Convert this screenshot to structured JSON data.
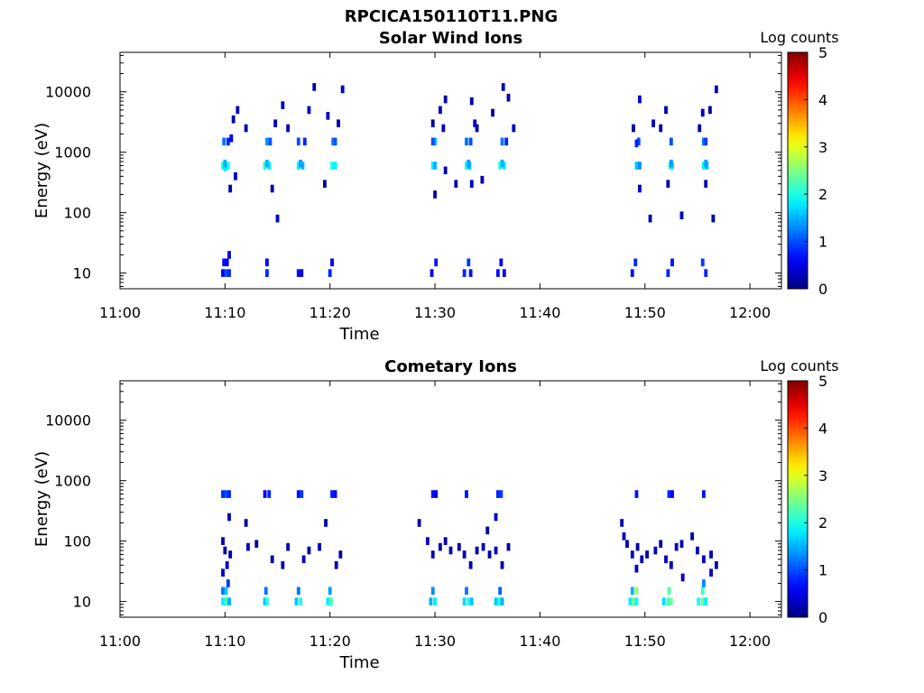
{
  "figure_title": "RPCICA150110T11.PNG",
  "chart_data": [
    {
      "type": "heatmap",
      "title": "Solar Wind Ions",
      "xlabel": "Time",
      "ylabel": "Energy (eV)",
      "x_tick_labels": [
        "11:00",
        "11:10",
        "11:20",
        "11:30",
        "11:40",
        "11:50",
        "12:00"
      ],
      "x_ticks_minutes": [
        0,
        10,
        20,
        30,
        40,
        50,
        60
      ],
      "xlim_minutes": [
        0,
        63
      ],
      "y_tick_labels": [
        "10",
        "100",
        "1000",
        "10000"
      ],
      "y_ticks": [
        10,
        100,
        1000,
        10000
      ],
      "ylim": [
        5.5,
        45000
      ],
      "y_scale": "log",
      "colorbar_label": "Log counts",
      "colorbar_ticks": [
        "0",
        "1",
        "2",
        "3",
        "4",
        "5"
      ],
      "clim": [
        0,
        5
      ],
      "colormap": "jet",
      "cells": [
        [
          9.8,
          600,
          2.0
        ],
        [
          10.0,
          600,
          2.3
        ],
        [
          10.3,
          600,
          2.0
        ],
        [
          10.0,
          560,
          1.8
        ],
        [
          10.0,
          650,
          1.5
        ],
        [
          9.9,
          1500,
          1.2
        ],
        [
          10.3,
          1500,
          0.8
        ],
        [
          10.6,
          1700,
          0.6
        ],
        [
          13.8,
          600,
          2.0
        ],
        [
          14.2,
          600,
          1.8
        ],
        [
          14.0,
          650,
          1.5
        ],
        [
          14.0,
          1500,
          1.4
        ],
        [
          14.3,
          1500,
          1.0
        ],
        [
          17.0,
          600,
          1.8
        ],
        [
          17.4,
          600,
          1.5
        ],
        [
          17.2,
          650,
          1.4
        ],
        [
          17.0,
          1500,
          1.0
        ],
        [
          17.6,
          1500,
          0.8
        ],
        [
          20.2,
          600,
          2.0
        ],
        [
          20.5,
          600,
          1.8
        ],
        [
          20.3,
          1500,
          1.2
        ],
        [
          20.5,
          1500,
          1.0
        ],
        [
          29.8,
          600,
          1.8
        ],
        [
          30.0,
          600,
          1.5
        ],
        [
          30.0,
          1500,
          1.5
        ],
        [
          29.8,
          1500,
          1.0
        ],
        [
          33.0,
          600,
          1.9
        ],
        [
          33.3,
          600,
          1.6
        ],
        [
          33.2,
          650,
          1.4
        ],
        [
          33.0,
          1500,
          1.2
        ],
        [
          33.4,
          1500,
          1.0
        ],
        [
          36.2,
          600,
          2.0
        ],
        [
          36.6,
          600,
          1.8
        ],
        [
          36.4,
          650,
          1.5
        ],
        [
          36.4,
          1500,
          1.2
        ],
        [
          36.8,
          1500,
          0.8
        ],
        [
          49.2,
          600,
          1.6
        ],
        [
          49.5,
          600,
          1.3
        ],
        [
          49.4,
          1500,
          1.0
        ],
        [
          49.2,
          1400,
          0.8
        ],
        [
          52.4,
          600,
          2.0
        ],
        [
          52.6,
          600,
          1.8
        ],
        [
          52.5,
          650,
          1.4
        ],
        [
          52.5,
          1500,
          1.0
        ],
        [
          55.6,
          600,
          1.8
        ],
        [
          55.9,
          600,
          1.6
        ],
        [
          55.8,
          650,
          1.4
        ],
        [
          55.6,
          1500,
          1.2
        ],
        [
          55.8,
          1500,
          0.9
        ],
        [
          9.8,
          10,
          0.6
        ],
        [
          10.1,
          10,
          1.0
        ],
        [
          10.4,
          10,
          0.8
        ],
        [
          9.9,
          15,
          0.7
        ],
        [
          10.2,
          15,
          0.6
        ],
        [
          10.4,
          20,
          0.5
        ],
        [
          14.0,
          10,
          0.8
        ],
        [
          14.0,
          15,
          0.6
        ],
        [
          17.0,
          10,
          0.7
        ],
        [
          17.3,
          10,
          0.5
        ],
        [
          20.0,
          10,
          0.8
        ],
        [
          20.2,
          15,
          0.6
        ],
        [
          29.7,
          10,
          0.6
        ],
        [
          30.1,
          15,
          0.7
        ],
        [
          32.8,
          10,
          0.8
        ],
        [
          33.2,
          15,
          0.9
        ],
        [
          33.4,
          10,
          0.7
        ],
        [
          36.0,
          10,
          0.7
        ],
        [
          36.3,
          15,
          0.6
        ],
        [
          36.6,
          10,
          0.5
        ],
        [
          48.8,
          10,
          0.7
        ],
        [
          49.1,
          15,
          0.8
        ],
        [
          52.2,
          10,
          0.8
        ],
        [
          52.6,
          15,
          0.7
        ],
        [
          55.5,
          15,
          0.9
        ],
        [
          55.8,
          10,
          0.8
        ],
        [
          10.8,
          3500,
          0.3
        ],
        [
          11.2,
          5000,
          0.3
        ],
        [
          12.0,
          2500,
          0.2
        ],
        [
          11.0,
          400,
          0.3
        ],
        [
          10.5,
          250,
          0.2
        ],
        [
          14.8,
          3000,
          0.2
        ],
        [
          15.5,
          6000,
          0.3
        ],
        [
          16.0,
          2500,
          0.3
        ],
        [
          18.0,
          5000,
          0.3
        ],
        [
          18.5,
          12000,
          0.2
        ],
        [
          19.8,
          4000,
          0.3
        ],
        [
          20.8,
          3000,
          0.2
        ],
        [
          21.2,
          11000,
          0.3
        ],
        [
          14.5,
          250,
          0.2
        ],
        [
          15.0,
          80,
          0.3
        ],
        [
          19.5,
          300,
          0.2
        ],
        [
          29.8,
          3000,
          0.2
        ],
        [
          30.5,
          5000,
          0.3
        ],
        [
          31.0,
          7500,
          0.2
        ],
        [
          30.8,
          2500,
          0.3
        ],
        [
          33.5,
          7000,
          0.2
        ],
        [
          33.8,
          3000,
          0.3
        ],
        [
          34.0,
          2500,
          0.2
        ],
        [
          35.5,
          4500,
          0.2
        ],
        [
          36.5,
          12000,
          0.3
        ],
        [
          37.0,
          8000,
          0.2
        ],
        [
          37.5,
          2500,
          0.3
        ],
        [
          31.0,
          500,
          0.2
        ],
        [
          32.0,
          300,
          0.2
        ],
        [
          33.5,
          300,
          0.3
        ],
        [
          34.5,
          350,
          0.2
        ],
        [
          30.0,
          200,
          0.2
        ],
        [
          48.9,
          2500,
          0.2
        ],
        [
          49.5,
          7500,
          0.3
        ],
        [
          50.8,
          3000,
          0.3
        ],
        [
          51.5,
          2500,
          0.2
        ],
        [
          52.0,
          5000,
          0.2
        ],
        [
          55.5,
          4500,
          0.3
        ],
        [
          56.2,
          5000,
          0.2
        ],
        [
          56.8,
          11000,
          0.3
        ],
        [
          55.2,
          2500,
          0.2
        ],
        [
          49.5,
          250,
          0.3
        ],
        [
          52.2,
          300,
          0.2
        ],
        [
          55.8,
          300,
          0.2
        ],
        [
          50.5,
          80,
          0.2
        ],
        [
          53.5,
          90,
          0.3
        ],
        [
          56.5,
          80,
          0.2
        ]
      ]
    },
    {
      "type": "heatmap",
      "title": "Cometary Ions",
      "xlabel": "Time",
      "ylabel": "Energy (eV)",
      "x_tick_labels": [
        "11:00",
        "11:10",
        "11:20",
        "11:30",
        "11:40",
        "11:50",
        "12:00"
      ],
      "x_ticks_minutes": [
        0,
        10,
        20,
        30,
        40,
        50,
        60
      ],
      "xlim_minutes": [
        0,
        63
      ],
      "y_tick_labels": [
        "10",
        "100",
        "1000",
        "10000"
      ],
      "y_ticks": [
        10,
        100,
        1000,
        10000
      ],
      "ylim": [
        5.5,
        45000
      ],
      "y_scale": "log",
      "colorbar_label": "Log counts",
      "colorbar_ticks": [
        "0",
        "1",
        "2",
        "3",
        "4",
        "5"
      ],
      "clim": [
        0,
        5
      ],
      "colormap": "jet",
      "cells": [
        [
          9.8,
          600,
          0.8
        ],
        [
          10.1,
          600,
          1.0
        ],
        [
          10.4,
          600,
          0.8
        ],
        [
          13.8,
          600,
          0.6
        ],
        [
          14.2,
          600,
          0.8
        ],
        [
          17.0,
          600,
          0.7
        ],
        [
          17.3,
          600,
          0.9
        ],
        [
          20.2,
          600,
          0.8
        ],
        [
          20.5,
          600,
          0.6
        ],
        [
          29.8,
          600,
          0.7
        ],
        [
          30.1,
          600,
          0.5
        ],
        [
          33.0,
          600,
          0.7
        ],
        [
          36.0,
          600,
          0.8
        ],
        [
          36.3,
          600,
          0.9
        ],
        [
          49.2,
          600,
          0.7
        ],
        [
          52.3,
          600,
          0.8
        ],
        [
          52.6,
          600,
          0.6
        ],
        [
          55.6,
          600,
          0.7
        ],
        [
          9.8,
          10,
          1.8
        ],
        [
          10.1,
          10,
          2.2
        ],
        [
          10.4,
          10,
          1.5
        ],
        [
          9.8,
          15,
          1.2
        ],
        [
          10.1,
          15,
          1.6
        ],
        [
          10.3,
          20,
          0.9
        ],
        [
          13.8,
          10,
          1.6
        ],
        [
          14.0,
          10,
          2.0
        ],
        [
          13.9,
          15,
          1.2
        ],
        [
          16.8,
          10,
          1.6
        ],
        [
          17.2,
          10,
          2.0
        ],
        [
          17.0,
          15,
          1.2
        ],
        [
          19.8,
          10,
          1.8
        ],
        [
          20.1,
          10,
          2.2
        ],
        [
          20.0,
          15,
          1.4
        ],
        [
          29.6,
          10,
          1.5
        ],
        [
          30.0,
          10,
          1.8
        ],
        [
          29.8,
          15,
          1.3
        ],
        [
          32.8,
          10,
          1.7
        ],
        [
          33.2,
          10,
          2.0
        ],
        [
          33.5,
          10,
          1.6
        ],
        [
          33.0,
          15,
          1.2
        ],
        [
          35.8,
          10,
          1.6
        ],
        [
          36.1,
          10,
          2.0
        ],
        [
          36.4,
          10,
          1.5
        ],
        [
          36.2,
          15,
          1.1
        ],
        [
          48.6,
          10,
          1.8
        ],
        [
          48.9,
          10,
          2.4
        ],
        [
          49.2,
          10,
          1.9
        ],
        [
          48.8,
          15,
          1.5
        ],
        [
          49.2,
          15,
          2.6
        ],
        [
          51.8,
          10,
          1.7
        ],
        [
          52.2,
          10,
          2.2
        ],
        [
          52.5,
          10,
          2.4
        ],
        [
          52.3,
          15,
          2.3
        ],
        [
          55.1,
          10,
          2.0
        ],
        [
          55.5,
          10,
          2.4
        ],
        [
          55.8,
          10,
          1.8
        ],
        [
          55.5,
          15,
          2.2
        ],
        [
          55.6,
          20,
          1.3
        ],
        [
          9.8,
          30,
          0.4
        ],
        [
          10.2,
          40,
          0.3
        ],
        [
          10.5,
          60,
          0.2
        ],
        [
          9.8,
          100,
          0.3
        ],
        [
          10.0,
          70,
          0.2
        ],
        [
          12.2,
          80,
          0.3
        ],
        [
          13.0,
          90,
          0.2
        ],
        [
          14.5,
          50,
          0.2
        ],
        [
          15.5,
          40,
          0.3
        ],
        [
          16.0,
          80,
          0.2
        ],
        [
          17.5,
          50,
          0.3
        ],
        [
          18.0,
          70,
          0.2
        ],
        [
          19.0,
          80,
          0.3
        ],
        [
          19.6,
          200,
          0.2
        ],
        [
          20.6,
          40,
          0.3
        ],
        [
          21.0,
          60,
          0.2
        ],
        [
          10.4,
          250,
          0.2
        ],
        [
          12.0,
          200,
          0.2
        ],
        [
          28.5,
          200,
          0.2
        ],
        [
          29.3,
          100,
          0.3
        ],
        [
          29.8,
          60,
          0.3
        ],
        [
          30.5,
          80,
          0.2
        ],
        [
          31.0,
          100,
          0.2
        ],
        [
          31.5,
          70,
          0.3
        ],
        [
          32.3,
          80,
          0.2
        ],
        [
          32.8,
          60,
          0.3
        ],
        [
          33.4,
          40,
          0.3
        ],
        [
          34.0,
          70,
          0.2
        ],
        [
          34.6,
          80,
          0.3
        ],
        [
          35.2,
          60,
          0.2
        ],
        [
          35.8,
          70,
          0.3
        ],
        [
          36.4,
          40,
          0.2
        ],
        [
          37.0,
          80,
          0.2
        ],
        [
          35.0,
          150,
          0.2
        ],
        [
          35.8,
          250,
          0.3
        ],
        [
          47.8,
          200,
          0.3
        ],
        [
          48.0,
          120,
          0.3
        ],
        [
          48.3,
          90,
          0.2
        ],
        [
          48.8,
          60,
          0.3
        ],
        [
          49.3,
          80,
          0.2
        ],
        [
          49.7,
          50,
          0.3
        ],
        [
          50.2,
          60,
          0.2
        ],
        [
          51.0,
          70,
          0.3
        ],
        [
          51.5,
          90,
          0.2
        ],
        [
          52.0,
          50,
          0.3
        ],
        [
          52.5,
          40,
          0.2
        ],
        [
          53.0,
          80,
          0.3
        ],
        [
          53.5,
          90,
          0.2
        ],
        [
          54.5,
          120,
          0.2
        ],
        [
          55.0,
          70,
          0.3
        ],
        [
          55.6,
          50,
          0.3
        ],
        [
          56.3,
          60,
          0.3
        ],
        [
          56.8,
          40,
          0.2
        ],
        [
          56.3,
          30,
          0.4
        ],
        [
          53.6,
          25,
          0.3
        ],
        [
          49.2,
          35,
          0.3
        ]
      ]
    }
  ]
}
